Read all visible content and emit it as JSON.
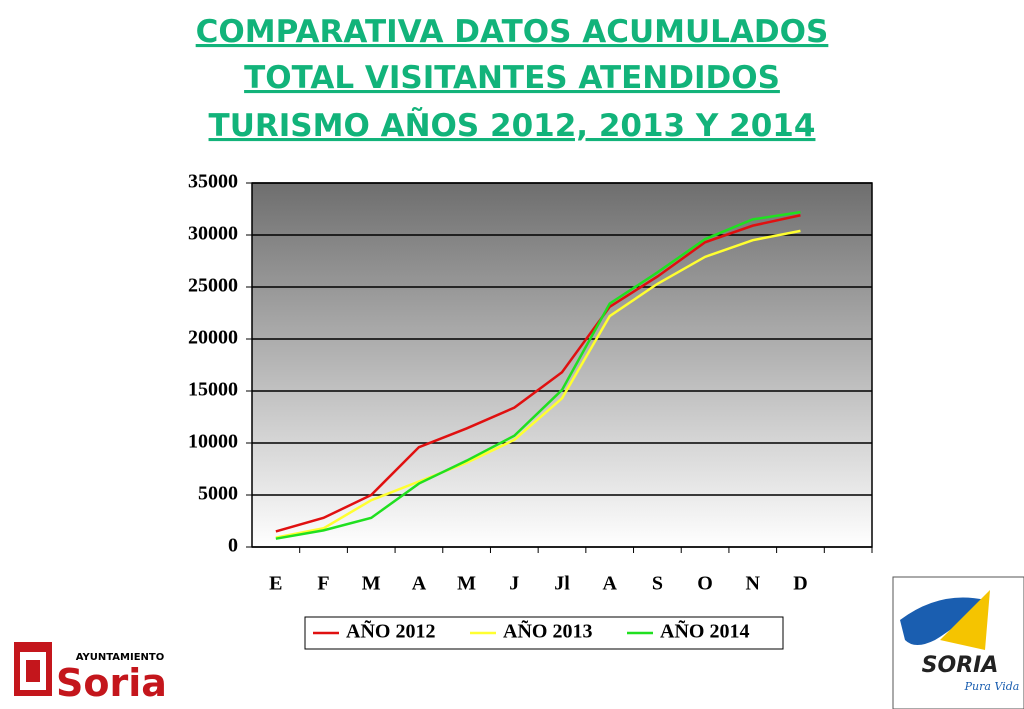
{
  "chart_data": {
    "type": "line",
    "title_lines": [
      "COMPARATIVA DATOS ACUMULADOS",
      "TOTAL VISITANTES ATENDIDOS",
      "TURISMO AÑOS 2012, 2013 Y 2014"
    ],
    "categories": [
      "E",
      "F",
      "M",
      "A",
      "M",
      "J",
      "Jl",
      "A",
      "S",
      "O",
      "N",
      "D",
      null
    ],
    "series": [
      {
        "name": "AÑO 2012",
        "color": "#e01010",
        "values": [
          1500,
          2800,
          5000,
          9600,
          11400,
          13400,
          16800,
          23100,
          26000,
          29300,
          30900,
          31900,
          null
        ]
      },
      {
        "name": "AÑO 2013",
        "color": "#ffff30",
        "values": [
          900,
          1800,
          4500,
          6300,
          8100,
          10300,
          14300,
          22200,
          25300,
          27900,
          29500,
          30400,
          null
        ]
      },
      {
        "name": "AÑO 2014",
        "color": "#20e020",
        "values": [
          800,
          1600,
          2800,
          6100,
          8300,
          10700,
          15100,
          23400,
          26400,
          29600,
          31500,
          32200,
          null
        ]
      }
    ],
    "ylim": [
      0,
      35000
    ],
    "yticks": [
      0,
      5000,
      10000,
      15000,
      20000,
      25000,
      30000,
      35000
    ],
    "grid": true
  },
  "logos": {
    "left_top": "AYUNTAMIENTO",
    "left_main": "Soria",
    "right_main": "SORIA",
    "right_sub": "Pura Vida"
  }
}
